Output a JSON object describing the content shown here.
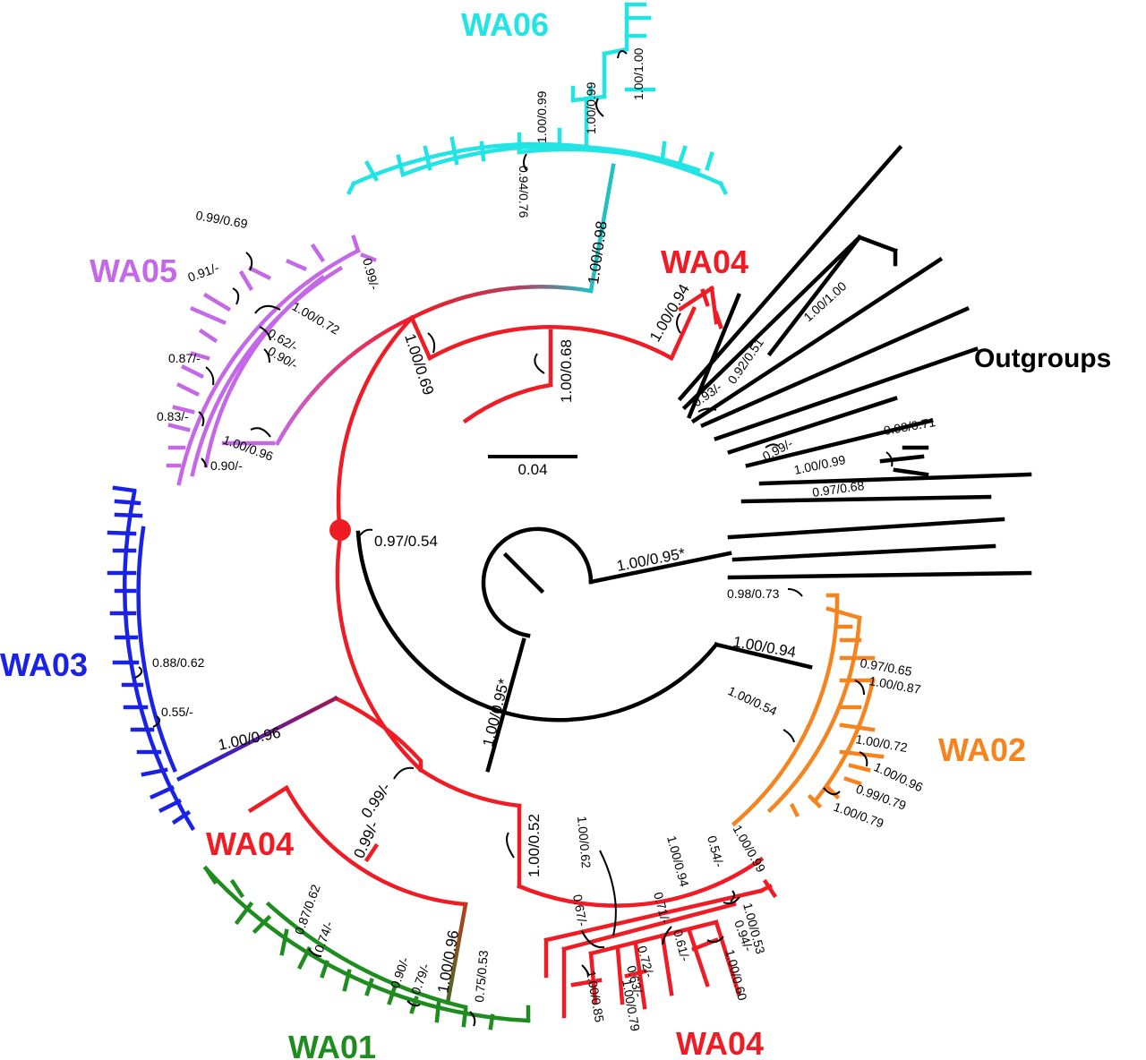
{
  "clades": {
    "wa06": "WA06",
    "wa05": "WA05",
    "wa04_top": "WA04",
    "wa03": "WA03",
    "wa04_left": "WA04",
    "wa02": "WA02",
    "wa01": "WA01",
    "wa04_bottom": "WA04",
    "outgroups": "Outgroups"
  },
  "colors": {
    "wa06": "#22e4e4",
    "wa05": "#c468e8",
    "wa04": "#ee1c24",
    "wa03": "#1a22e6",
    "wa02": "#f5841f",
    "wa01": "#1e8c1e",
    "outgroups": "#000000",
    "root_marker": "#ee1c24"
  },
  "scale_bar": {
    "label": "0.04"
  },
  "support": {
    "s_root_red": "0.97/0.54",
    "s_root_out": "1.00/0.95*",
    "s_inner_black": "1.00/0.95*",
    "s_upper_red": "1.00/0.69",
    "s_mid_red": "1.00/0.68",
    "s_wa04_top": "1.00/0.94",
    "s_wa06_stem": "1.00/0.98",
    "s_wa06_a": "0.94/0.76",
    "s_wa06_b": "1.00/0.99",
    "s_wa06_c": "1.00/0.99",
    "s_wa06_d": "1.00/1.00",
    "s_wa05_a": "0.99/0.69",
    "s_wa05_b": "0.91/-",
    "s_wa05_c": "1.00/0.72",
    "s_wa05_d": "0.62/-",
    "s_wa05_e": "0.90/-",
    "s_wa05_f": "0.87/-",
    "s_wa05_g": "0.83/-",
    "s_wa05_h": "1.00/0.96",
    "s_wa05_i": "0.90/-",
    "s_wa05_j": "0.99/-",
    "s_wa03_a": "0.88/0.62",
    "s_wa03_b": "0.55/-",
    "s_wa03_stem": "1.00/0.96",
    "s_left_a": "0.99/-",
    "s_left_b": "0.99/-",
    "s_low_red": "1.00/0.52",
    "s_wa01_stem": "1.00/0.96",
    "s_wa01_a": "0.87/0.62",
    "s_wa01_b": "0.74/-",
    "s_wa01_c": "0.90/-",
    "s_wa01_d": "0.79/-",
    "s_wa01_e": "0.75/0.53",
    "s_wa04b_a": "1.00/0.62",
    "s_wa04b_b": "0.67/-",
    "s_wa04b_c": "1.00/0.85",
    "s_wa04b_d": "1.00/0.94",
    "s_wa04b_e": "0.71/-",
    "s_wa04b_f": "0.72/-",
    "s_wa04b_g": "0.63/-",
    "s_wa04b_h": "1.00/0.79",
    "s_wa04b_i": "0.61/-",
    "s_wa04b_j": "0.54/-",
    "s_wa04b_k": "1.00/0.99",
    "s_wa04b_l": "1.00/0.53",
    "s_wa04b_m": "0.94/-",
    "s_wa04b_n": "1.00/0.60",
    "s_wa02_stem": "1.00/0.94",
    "s_wa02_a": "1.00/0.54",
    "s_wa02_b": "0.97/0.65",
    "s_wa02_c": "1.00/0.87",
    "s_wa02_d": "1.00/0.72",
    "s_wa02_e": "1.00/0.96",
    "s_wa02_f": "0.99/0.79",
    "s_wa02_g": "1.00/0.79",
    "s_out_a": "0.98/0.73",
    "s_out_b": "1.00/1.00",
    "s_out_c": "0.92/0.51",
    "s_out_d": "0.93/-",
    "s_out_e": "0.99/-",
    "s_out_f": "1.00/0.99",
    "s_out_g": "0.98/0.71",
    "s_out_h": "0.97/0.68"
  }
}
